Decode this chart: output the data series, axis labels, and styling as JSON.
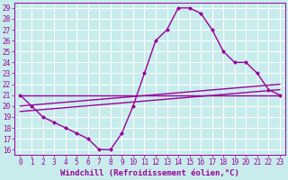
{
  "xlabel": "Windchill (Refroidissement éolien,°C)",
  "ylabel": "",
  "background_color": "#c8ecec",
  "grid_color": "#ffffff",
  "line_color": "#9b009b",
  "xlim": [
    -0.5,
    23.5
  ],
  "ylim": [
    15.5,
    29.5
  ],
  "yticks": [
    16,
    17,
    18,
    19,
    20,
    21,
    22,
    23,
    24,
    25,
    26,
    27,
    28,
    29
  ],
  "xticks": [
    0,
    1,
    2,
    3,
    4,
    5,
    6,
    7,
    8,
    9,
    10,
    11,
    12,
    13,
    14,
    15,
    16,
    17,
    18,
    19,
    20,
    21,
    22,
    23
  ],
  "lines": [
    {
      "x": [
        0,
        1,
        2,
        3,
        4,
        5,
        6,
        7,
        8,
        9,
        10,
        11,
        12,
        13,
        14,
        15,
        16,
        17,
        18,
        19,
        20,
        21,
        22,
        23
      ],
      "y": [
        21,
        20,
        19,
        18.5,
        18,
        17.5,
        17,
        16,
        16,
        17.5,
        20,
        23,
        26,
        27,
        29,
        29,
        28.5,
        27,
        25,
        24,
        24,
        23,
        21.5,
        21
      ],
      "marker": "D",
      "markersize": 2.5,
      "linewidth": 1.0
    },
    {
      "x": [
        0,
        23
      ],
      "y": [
        21,
        21
      ],
      "marker": null,
      "linewidth": 1.0
    },
    {
      "x": [
        0,
        23
      ],
      "y": [
        20,
        22
      ],
      "marker": null,
      "linewidth": 1.0
    },
    {
      "x": [
        0,
        23
      ],
      "y": [
        19.5,
        21.5
      ],
      "marker": null,
      "linewidth": 1.0
    }
  ],
  "tick_fontsize": 5.5,
  "xlabel_fontsize": 6.5
}
